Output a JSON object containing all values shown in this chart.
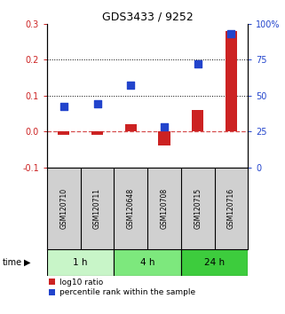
{
  "title": "GDS3433 / 9252",
  "samples": [
    "GSM120710",
    "GSM120711",
    "GSM120648",
    "GSM120708",
    "GSM120715",
    "GSM120716"
  ],
  "log10_ratio": [
    -0.01,
    -0.01,
    0.02,
    -0.04,
    0.06,
    0.28
  ],
  "percentile_rank": [
    42,
    44,
    57,
    28,
    72,
    93
  ],
  "left_ylim": [
    -0.1,
    0.3
  ],
  "right_ylim": [
    0,
    100
  ],
  "left_yticks": [
    -0.1,
    0.0,
    0.1,
    0.2,
    0.3
  ],
  "right_yticks": [
    0,
    25,
    50,
    75,
    100
  ],
  "right_yticklabels": [
    "0",
    "25",
    "50",
    "75",
    "100%"
  ],
  "dotted_lines": [
    0.1,
    0.2
  ],
  "dashed_zero": 0.0,
  "time_groups": [
    {
      "label": "1 h",
      "start": 0,
      "end": 2,
      "color": "#c8f5c8"
    },
    {
      "label": "4 h",
      "start": 2,
      "end": 4,
      "color": "#7de87d"
    },
    {
      "label": "24 h",
      "start": 4,
      "end": 6,
      "color": "#3dcc3d"
    }
  ],
  "bar_color": "#cc2222",
  "dot_color": "#2244cc",
  "bar_width": 0.35,
  "dot_size": 28,
  "background_color": "#ffffff",
  "label_bg_color": "#d0d0d0",
  "legend_log10": "log10 ratio",
  "legend_pct": "percentile rank within the sample"
}
